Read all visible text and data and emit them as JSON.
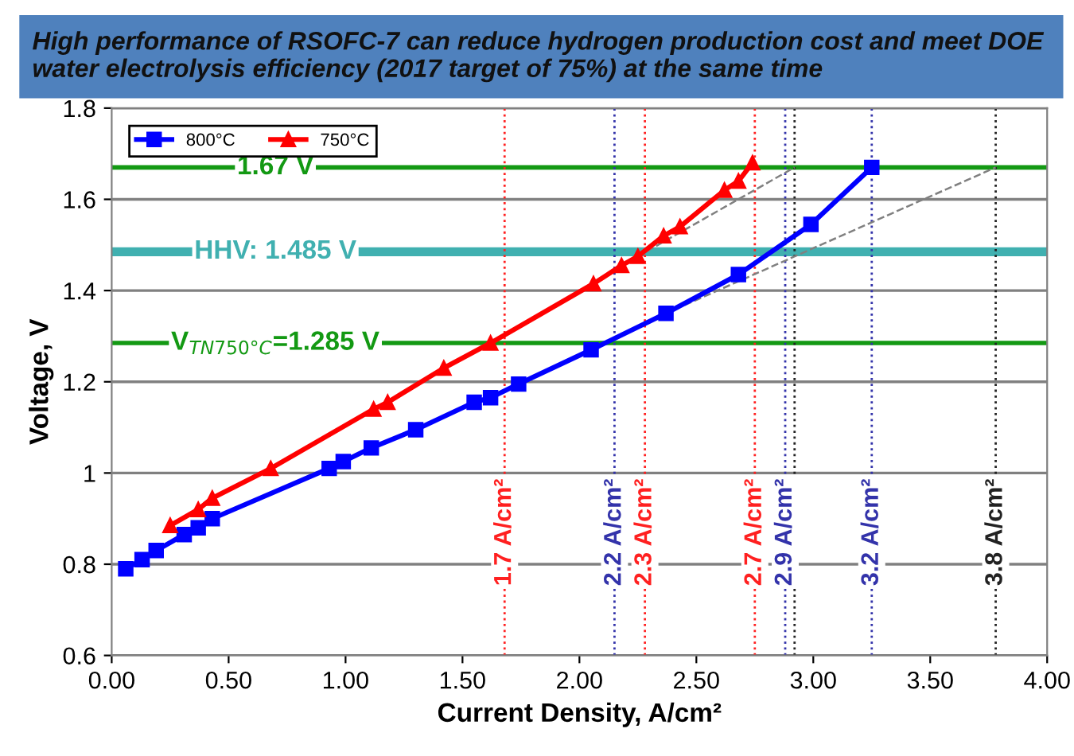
{
  "chart_data": {
    "type": "line",
    "title": "High performance of RSOFC-7 can reduce hydrogen production cost and meet DOE water electrolysis efficiency (2017 target of 75%) at the same time",
    "xlabel": "Current Density, A/cm²",
    "ylabel": "Voltage, V",
    "series": [
      {
        "name": "800°C",
        "color": "#0000ff",
        "marker": "square",
        "x": [
          0.06,
          0.13,
          0.19,
          0.31,
          0.37,
          0.43,
          0.93,
          0.99,
          1.11,
          1.3,
          1.55,
          1.62,
          1.74,
          2.05,
          2.37,
          2.68,
          2.99,
          3.25
        ],
        "values": [
          0.79,
          0.81,
          0.83,
          0.865,
          0.88,
          0.9,
          1.01,
          1.025,
          1.055,
          1.095,
          1.155,
          1.165,
          1.195,
          1.27,
          1.35,
          1.435,
          1.545,
          1.67
        ]
      },
      {
        "name": "750°C",
        "color": "#ff0000",
        "marker": "triangle",
        "x": [
          0.25,
          0.37,
          0.43,
          0.68,
          1.12,
          1.18,
          1.42,
          1.62,
          2.06,
          2.18,
          2.25,
          2.36,
          2.43,
          2.62,
          2.68,
          2.74
        ],
        "values": [
          0.885,
          0.92,
          0.945,
          1.01,
          1.14,
          1.155,
          1.23,
          1.285,
          1.415,
          1.455,
          1.475,
          1.52,
          1.54,
          1.62,
          1.64,
          1.68
        ]
      },
      {
        "type": "line",
        "color": "#808080",
        "line_style": "dashed",
        "marker": "none",
        "x": [
          2.25,
          2.92
        ],
        "values": [
          1.475,
          1.67
        ]
      },
      {
        "type": "line",
        "color": "#808080",
        "line_style": "dashed",
        "marker": "none",
        "x": [
          2.45,
          3.78
        ],
        "values": [
          1.368,
          1.67
        ]
      }
    ],
    "xlim": [
      0,
      4
    ],
    "ylim": [
      0.6,
      1.8
    ],
    "xticks": [
      {
        "value": 0,
        "label": "0.00"
      },
      {
        "value": 0.5,
        "label": "0.50"
      },
      {
        "value": 1,
        "label": "1.00"
      },
      {
        "value": 1.5,
        "label": "1.50"
      },
      {
        "value": 2,
        "label": "2.00"
      },
      {
        "value": 2.5,
        "label": "2.50"
      },
      {
        "value": 3,
        "label": "3.00"
      },
      {
        "value": 3.5,
        "label": "3.50"
      },
      {
        "value": 4,
        "label": "4.00"
      }
    ],
    "yticks": [
      0.6,
      0.8,
      1,
      1.2,
      1.4,
      1.6,
      1.8
    ],
    "grid": "y",
    "legend": "top left",
    "ref_lines": [
      {
        "axis": "y",
        "value": 1.67,
        "label": "1.67 V",
        "color": "#139913"
      },
      {
        "axis": "y",
        "value": 1.285,
        "label": "V$_{TN750°C}$=1.285 V",
        "color": "#139913"
      },
      {
        "axis": "x",
        "value": 1.68,
        "label": "1.7 A/cm²",
        "color": "#ff2020",
        "line_style": "dotted"
      },
      {
        "axis": "x",
        "value": 2.15,
        "label": "2.2 A/cm²",
        "color": "#3333aa",
        "line_style": "dotted"
      },
      {
        "axis": "x",
        "value": 2.28,
        "label": "2.3 A/cm²",
        "color": "#ff2020",
        "line_style": "dotted"
      },
      {
        "axis": "x",
        "value": 2.75,
        "label": "2.7 A/cm²",
        "color": "#ff2020",
        "line_style": "dotted"
      },
      {
        "axis": "x",
        "value": 2.88,
        "label": "2.9 A/cm²",
        "color": "#3333aa",
        "line_style": "dotted"
      },
      {
        "axis": "x",
        "value": 2.92,
        "color": "#222222",
        "line_style": "dotted"
      },
      {
        "axis": "x",
        "value": 3.25,
        "label": "3.2 A/cm²",
        "color": "#3333aa",
        "line_style": "dotted"
      },
      {
        "axis": "x",
        "value": 3.78,
        "label": "3.8 A/cm²",
        "color": "#222222",
        "line_style": "dotted"
      }
    ],
    "bands": [
      {
        "axis": "y",
        "from": 1.48,
        "to": 1.49,
        "label": "HHV: 1.485 V",
        "color": "#40b0b0"
      }
    ]
  }
}
